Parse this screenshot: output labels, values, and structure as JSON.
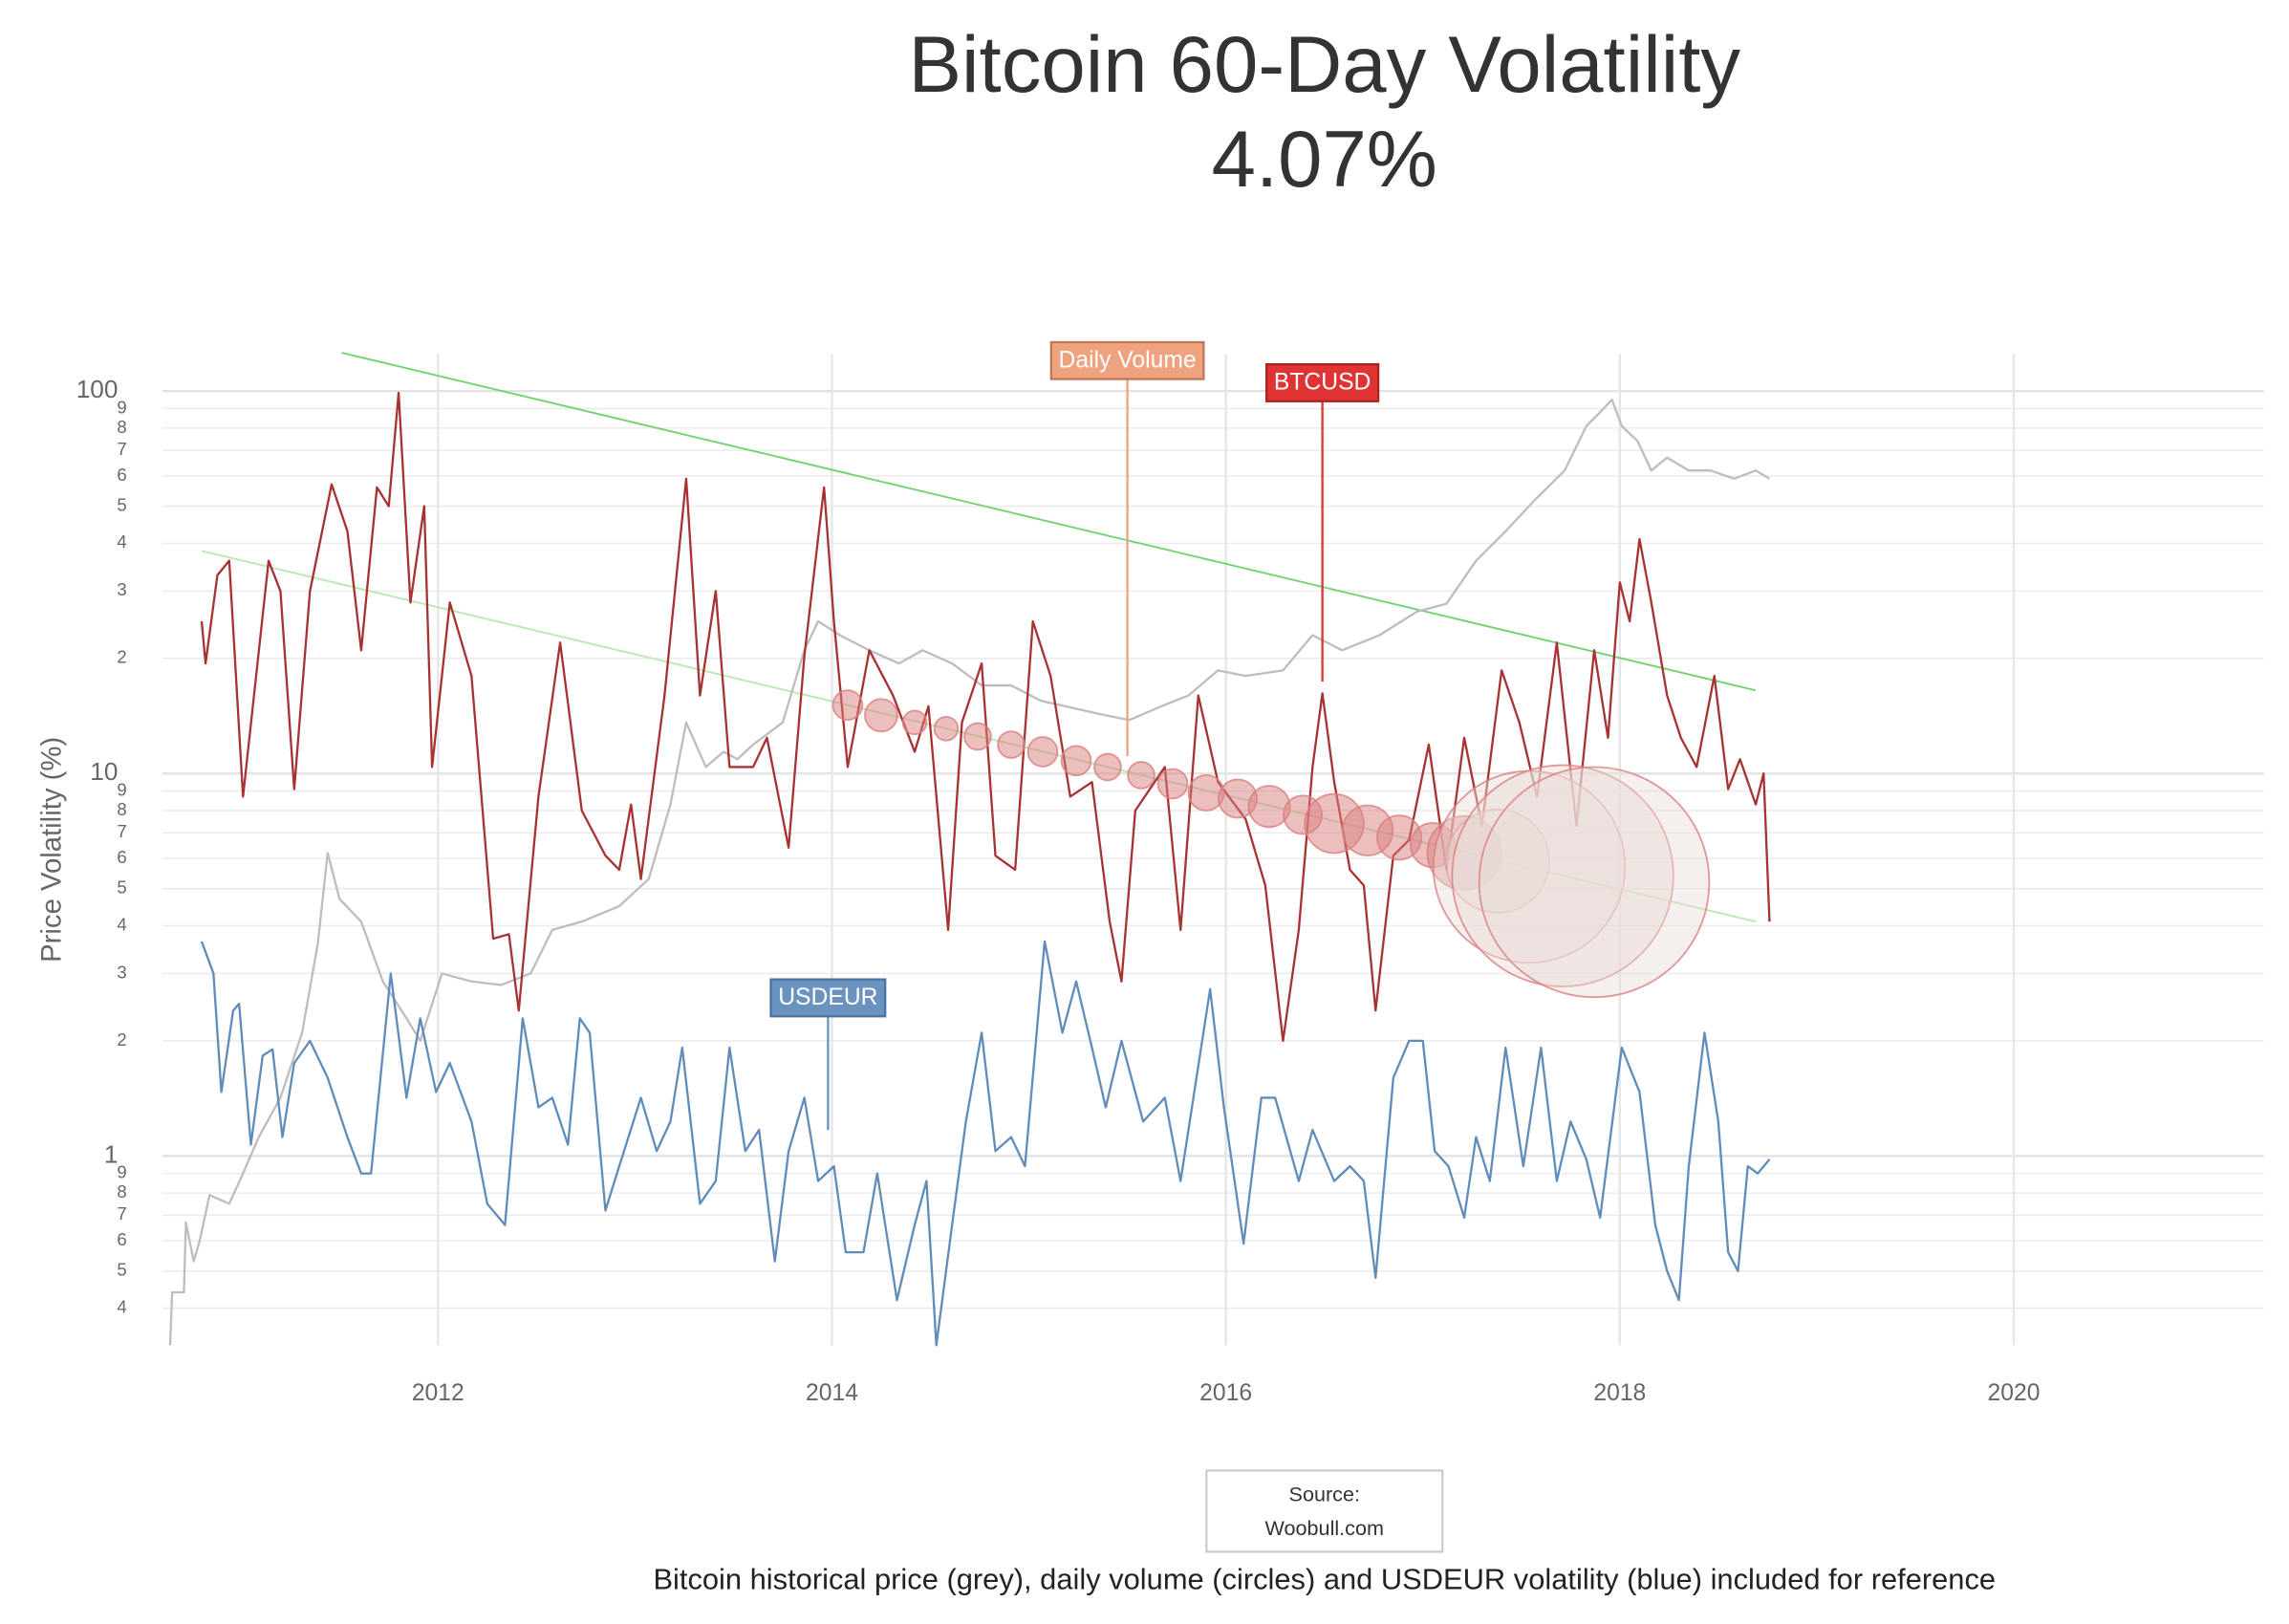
{
  "chart_data": {
    "type": "line",
    "title": "Bitcoin 60-Day Volatility",
    "subtitle": "4.07%",
    "y_label": "Price Volatility (%)",
    "log_y": true,
    "grid": true,
    "xlim": [
      2010.6,
      2021.27
    ],
    "xticks": [
      2012,
      2014,
      2016,
      2018,
      2020
    ],
    "ylim": [
      0.32,
      125
    ],
    "yticks": [
      {
        "value": 0.4,
        "label": "4"
      },
      {
        "value": 0.5,
        "label": "5"
      },
      {
        "value": 0.6,
        "label": "6"
      },
      {
        "value": 0.7,
        "label": "7"
      },
      {
        "value": 0.8,
        "label": "8"
      },
      {
        "value": 0.9,
        "label": "9"
      },
      1,
      2,
      3,
      4,
      5,
      6,
      7,
      8,
      9,
      10,
      {
        "value": 20,
        "label": "2"
      },
      {
        "value": 30,
        "label": "3"
      },
      {
        "value": 40,
        "label": "4"
      },
      {
        "value": 50,
        "label": "5"
      },
      {
        "value": 60,
        "label": "6"
      },
      {
        "value": 70,
        "label": "7"
      },
      {
        "value": 80,
        "label": "8"
      },
      {
        "value": 90,
        "label": "9"
      },
      100
    ],
    "series": [
      {
        "name": "Bitcoin price",
        "color": "#bdbdbd",
        "x": [
          2010.64,
          2010.65,
          2010.71,
          2010.72,
          2010.76,
          2010.79,
          2010.84,
          2010.94,
          2011.01,
          2011.09,
          2011.2,
          2011.31,
          2011.39,
          2011.44,
          2011.5,
          2011.61,
          2011.72,
          2011.84,
          2011.91,
          2012.02,
          2012.17,
          2012.32,
          2012.47,
          2012.58,
          2012.73,
          2012.92,
          2013.07,
          2013.18,
          2013.26,
          2013.36,
          2013.45,
          2013.52,
          2013.6,
          2013.75,
          2013.86,
          2013.93,
          2014.04,
          2014.19,
          2014.34,
          2014.46,
          2014.61,
          2014.76,
          2014.91,
          2015.06,
          2015.21,
          2015.36,
          2015.51,
          2015.66,
          2015.81,
          2015.96,
          2016.1,
          2016.29,
          2016.44,
          2016.59,
          2016.78,
          2016.97,
          2017.12,
          2017.27,
          2017.42,
          2017.57,
          2017.72,
          2017.83,
          2017.9,
          2017.96,
          2018.01,
          2018.09,
          2018.16,
          2018.24,
          2018.35,
          2018.46,
          2018.58,
          2018.69,
          2018.76
        ],
        "values": [
          0.32,
          0.44,
          0.44,
          0.67,
          0.53,
          0.6,
          0.79,
          0.75,
          0.9,
          1.12,
          1.42,
          2.1,
          3.6,
          6.2,
          4.7,
          4.1,
          2.86,
          2.29,
          2.0,
          3.0,
          2.86,
          2.8,
          3.0,
          3.9,
          4.1,
          4.5,
          5.3,
          8.3,
          13.6,
          10.4,
          11.4,
          10.9,
          11.9,
          13.6,
          21,
          25,
          23,
          21,
          19.4,
          21,
          19.4,
          17,
          17,
          15.5,
          14.9,
          14.3,
          13.8,
          14.9,
          16,
          18.6,
          18,
          18.6,
          23,
          21,
          23,
          26.5,
          27.8,
          36,
          43,
          52,
          62,
          81,
          88,
          95,
          81,
          74,
          62,
          67,
          62,
          62,
          59,
          62,
          59
        ]
      },
      {
        "name": "BTCUSD",
        "color": "#a83232",
        "x": [
          2010.8,
          2010.82,
          2010.88,
          2010.94,
          2011.01,
          2011.06,
          2011.14,
          2011.2,
          2011.27,
          2011.35,
          2011.46,
          2011.54,
          2011.61,
          2011.69,
          2011.75,
          2011.8,
          2011.86,
          2011.93,
          2011.97,
          2012.06,
          2012.17,
          2012.28,
          2012.36,
          2012.41,
          2012.51,
          2012.62,
          2012.73,
          2012.85,
          2012.92,
          2012.98,
          2013.03,
          2013.15,
          2013.26,
          2013.33,
          2013.41,
          2013.48,
          2013.6,
          2013.67,
          2013.78,
          2013.86,
          2013.96,
          2014.01,
          2014.08,
          2014.19,
          2014.31,
          2014.42,
          2014.49,
          2014.59,
          2014.66,
          2014.76,
          2014.83,
          2014.93,
          2015.02,
          2015.11,
          2015.21,
          2015.32,
          2015.41,
          2015.47,
          2015.54,
          2015.69,
          2015.77,
          2015.86,
          2015.96,
          2016.1,
          2016.2,
          2016.29,
          2016.37,
          2016.44,
          2016.49,
          2016.55,
          2016.63,
          2016.7,
          2016.76,
          2016.85,
          2016.93,
          2017.03,
          2017.12,
          2017.21,
          2017.3,
          2017.4,
          2017.49,
          2017.58,
          2017.68,
          2017.78,
          2017.87,
          2017.94,
          2018.0,
          2018.05,
          2018.1,
          2018.16,
          2018.24,
          2018.31,
          2018.39,
          2018.48,
          2018.55,
          2018.61,
          2018.69,
          2018.73,
          2018.76
        ],
        "values": [
          25,
          19.4,
          33,
          36,
          8.7,
          15,
          36,
          30,
          9.1,
          30,
          57,
          43,
          21,
          56,
          50,
          99,
          28,
          50,
          10.4,
          28,
          18,
          3.7,
          3.8,
          2.4,
          8.7,
          22,
          8,
          6.1,
          5.6,
          8.3,
          5.3,
          16,
          59,
          16,
          30,
          10.4,
          10.4,
          12.4,
          6.4,
          20.3,
          56,
          25,
          10.4,
          21,
          16,
          11.4,
          15,
          3.9,
          13.6,
          19.4,
          6.1,
          5.6,
          25,
          18,
          8.7,
          9.5,
          4.1,
          2.86,
          8,
          10.4,
          3.9,
          16,
          9.5,
          7.6,
          5.1,
          2.0,
          3.9,
          10.4,
          16.2,
          9.5,
          5.6,
          5.1,
          2.4,
          6.1,
          6.7,
          11.9,
          5.6,
          12.4,
          7.3,
          18.6,
          13.6,
          8.7,
          22,
          7.3,
          21,
          12.4,
          31.6,
          25,
          41,
          28,
          16,
          12.4,
          10.4,
          18,
          9.1,
          10.9,
          8.3,
          10,
          4.1
        ]
      },
      {
        "name": "USDEUR",
        "color": "#5f8dbb",
        "x": [
          2010.8,
          2010.86,
          2010.9,
          2010.96,
          2010.99,
          2011.05,
          2011.11,
          2011.16,
          2011.21,
          2011.27,
          2011.35,
          2011.44,
          2011.54,
          2011.61,
          2011.66,
          2011.76,
          2011.84,
          2011.91,
          2011.99,
          2012.06,
          2012.17,
          2012.25,
          2012.34,
          2012.43,
          2012.51,
          2012.58,
          2012.66,
          2012.72,
          2012.77,
          2012.85,
          2012.92,
          2013.03,
          2013.11,
          2013.18,
          2013.24,
          2013.33,
          2013.41,
          2013.48,
          2013.56,
          2013.63,
          2013.71,
          2013.78,
          2013.86,
          2013.93,
          2014.01,
          2014.07,
          2014.16,
          2014.23,
          2014.33,
          2014.42,
          2014.48,
          2014.53,
          2014.61,
          2014.68,
          2014.76,
          2014.83,
          2014.91,
          2014.98,
          2015.08,
          2015.17,
          2015.24,
          2015.32,
          2015.39,
          2015.47,
          2015.58,
          2015.69,
          2015.77,
          2015.92,
          2015.99,
          2016.09,
          2016.18,
          2016.25,
          2016.37,
          2016.44,
          2016.55,
          2016.63,
          2016.7,
          2016.76,
          2016.85,
          2016.93,
          2017.0,
          2017.06,
          2017.13,
          2017.21,
          2017.27,
          2017.34,
          2017.42,
          2017.51,
          2017.6,
          2017.68,
          2017.75,
          2017.83,
          2017.9,
          2018.01,
          2018.1,
          2018.18,
          2018.24,
          2018.3,
          2018.35,
          2018.43,
          2018.5,
          2018.55,
          2018.6,
          2018.65,
          2018.7,
          2018.76
        ],
        "values": [
          3.64,
          3.0,
          1.47,
          2.4,
          2.5,
          1.07,
          1.83,
          1.9,
          1.12,
          1.75,
          2.0,
          1.6,
          1.12,
          0.9,
          0.9,
          3.0,
          1.42,
          2.29,
          1.47,
          1.75,
          1.23,
          0.75,
          0.66,
          2.29,
          1.34,
          1.42,
          1.07,
          2.29,
          2.1,
          0.72,
          0.94,
          1.42,
          1.03,
          1.23,
          1.92,
          0.75,
          0.86,
          1.92,
          1.03,
          1.17,
          0.53,
          1.03,
          1.42,
          0.86,
          0.94,
          0.56,
          0.56,
          0.9,
          0.42,
          0.66,
          0.86,
          0.32,
          0.66,
          1.23,
          2.1,
          1.03,
          1.12,
          0.94,
          3.64,
          2.1,
          2.86,
          1.92,
          1.34,
          2.0,
          1.23,
          1.42,
          0.86,
          2.73,
          1.34,
          0.59,
          1.42,
          1.42,
          0.86,
          1.17,
          0.86,
          0.94,
          0.86,
          0.48,
          1.6,
          2.0,
          2.0,
          1.03,
          0.94,
          0.69,
          1.12,
          0.86,
          1.92,
          0.94,
          1.92,
          0.86,
          1.23,
          0.98,
          0.69,
          1.92,
          1.47,
          0.66,
          0.5,
          0.42,
          0.94,
          2.1,
          1.23,
          0.56,
          0.5,
          0.94,
          0.9,
          0.98
        ]
      }
    ],
    "volume": {
      "name": "Daily Volume",
      "color": "#d98080",
      "x": [
        2014.08,
        2014.25,
        2014.42,
        2014.58,
        2014.74,
        2014.91,
        2015.07,
        2015.24,
        2015.4,
        2015.57,
        2015.73,
        2015.9,
        2016.06,
        2016.22,
        2016.39,
        2016.55,
        2016.72,
        2016.88,
        2017.05,
        2017.21,
        2017.38,
        2017.54,
        2017.71,
        2017.87
      ],
      "values": [
        15.1,
        14.2,
        13.6,
        13.1,
        12.5,
        11.9,
        11.4,
        10.8,
        10.4,
        9.9,
        9.4,
        8.9,
        8.6,
        8.2,
        7.8,
        7.4,
        7.1,
        6.8,
        6.5,
        6.2,
        5.9,
        5.7,
        5.4,
        5.2
      ],
      "sizes": [
        10,
        11,
        8,
        8,
        9,
        9,
        10,
        10,
        9,
        9,
        10,
        12,
        13,
        14,
        13,
        20,
        17,
        15,
        15,
        25,
        35,
        65,
        75,
        78
      ]
    },
    "trend_lines": [
      {
        "color": "#6fd36f",
        "x": [
          2011.51,
          2018.69
        ],
        "values": [
          126,
          16.5
        ]
      },
      {
        "color": "#b9e8b3",
        "x": [
          2010.8,
          2018.69
        ],
        "values": [
          38.2,
          4.1
        ]
      }
    ],
    "annotations": [
      {
        "text": "Daily Volume",
        "x": 2015.5,
        "value": 11.1,
        "color": "#eea27e",
        "border": "#c0785a"
      },
      {
        "text": "BTCUSD",
        "x": 2016.49,
        "value": 17.4,
        "color": "#e03333",
        "border": "#b02020"
      },
      {
        "text": "USDEUR",
        "x": 2013.98,
        "value": 1.17,
        "color": "#6a93c0",
        "border": "#4a73a0"
      }
    ],
    "source": [
      "Source:",
      "Woobull.com"
    ],
    "caption": "Bitcoin historical price (grey), daily volume (circles) and USDEUR volatility (blue) included for reference"
  }
}
